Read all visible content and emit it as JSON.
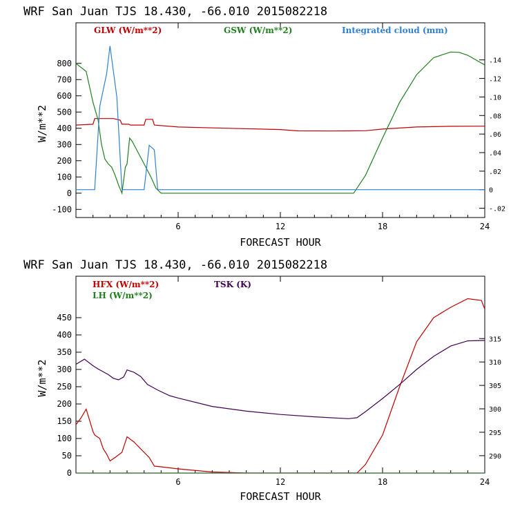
{
  "chart_data": [
    {
      "type": "line",
      "title": "WRF  San Juan TJS  18.430, -66.010  2015082218",
      "xlabel": "FORECAST HOUR",
      "ylabel": "W/m**2",
      "xlim": [
        0,
        24
      ],
      "ylim": [
        -150,
        1050
      ],
      "y2lim": [
        -0.03,
        0.18
      ],
      "x_ticks": [
        "6",
        "12",
        "18",
        "24"
      ],
      "y_ticks": [
        "800",
        "700",
        "600",
        "500",
        "400",
        "300",
        "200",
        "100",
        "0",
        "-100"
      ],
      "y2_ticks": [
        ".14",
        ".12",
        ".10",
        ".08",
        ".06",
        ".04",
        ".02",
        "0",
        "-.02"
      ],
      "series": [
        {
          "name": "GLW (W/m**2)",
          "color": "#c00000",
          "axis": "left",
          "x": [
            0,
            1,
            1.1,
            2.2,
            2.6,
            2.7,
            3.1,
            3.2,
            4.0,
            4.1,
            4.5,
            4.6,
            6,
            9,
            12,
            13,
            15,
            17,
            18,
            20,
            22,
            24
          ],
          "y": [
            420,
            425,
            460,
            460,
            450,
            425,
            425,
            420,
            420,
            455,
            455,
            420,
            408,
            400,
            392,
            384,
            383,
            385,
            395,
            408,
            412,
            413
          ]
        },
        {
          "name": "GSW (W/m**2)",
          "color": "#208020",
          "axis": "left",
          "x": [
            0,
            0.6,
            1.0,
            1.3,
            1.5,
            1.7,
            1.9,
            2.1,
            2.3,
            2.5,
            2.7,
            2.9,
            3.0,
            3.15,
            3.3,
            3.6,
            4.0,
            4.4,
            4.7,
            5,
            6,
            10,
            14,
            16.3,
            17,
            18,
            19,
            20,
            21,
            22,
            22.5,
            23,
            24
          ],
          "y": [
            800,
            750,
            560,
            450,
            300,
            210,
            180,
            160,
            110,
            50,
            0,
            160,
            180,
            340,
            320,
            260,
            180,
            100,
            30,
            0,
            0,
            0,
            0,
            0,
            110,
            340,
            560,
            730,
            835,
            870,
            868,
            850,
            790
          ]
        },
        {
          "name": "Integrated cloud (mm)",
          "color": "#3080d0",
          "axis": "right",
          "x": [
            0,
            0.7,
            1.1,
            1.4,
            1.8,
            2.0,
            2.4,
            2.7,
            3.0,
            3.8,
            4.0,
            4.3,
            4.6,
            4.8,
            5,
            8,
            16,
            24
          ],
          "y": [
            0,
            0,
            0,
            0.09,
            0.125,
            0.155,
            0.1,
            0,
            0,
            0,
            0,
            0.048,
            0.043,
            0,
            0,
            0,
            0,
            0
          ]
        }
      ]
    },
    {
      "type": "line",
      "title": "WRF  San Juan TJS  18.430, -66.010  2015082218",
      "xlabel": "FORECAST HOUR",
      "ylabel": "W/m**2",
      "xlim": [
        0,
        24
      ],
      "ylim": [
        0,
        570
      ],
      "y2lim": [
        286.3,
        328.3
      ],
      "x_ticks": [
        "6",
        "12",
        "18",
        "24"
      ],
      "y_ticks": [
        "450",
        "400",
        "350",
        "300",
        "250",
        "200",
        "150",
        "100",
        "50",
        "0"
      ],
      "y2_ticks": [
        "315",
        "310",
        "305",
        "300",
        "295",
        "290"
      ],
      "series": [
        {
          "name": "HFX (W/m**2)",
          "color": "#c00000",
          "axis": "left",
          "x": [
            0,
            0.3,
            0.6,
            1.0,
            1.1,
            1.4,
            1.6,
            1.8,
            2.0,
            2.3,
            2.7,
            3.0,
            3.4,
            3.8,
            4.3,
            4.6,
            5,
            6,
            8,
            10,
            14,
            16.5,
            17,
            18,
            19,
            20,
            21,
            22,
            23,
            23.8,
            24
          ],
          "y": [
            140,
            160,
            185,
            120,
            110,
            100,
            70,
            55,
            35,
            45,
            60,
            105,
            90,
            70,
            45,
            20,
            18,
            12,
            3,
            0,
            0,
            0,
            25,
            110,
            250,
            380,
            450,
            480,
            505,
            500,
            475
          ]
        },
        {
          "name": "LH  (W/m**2)",
          "color": "#208020",
          "axis": "left",
          "x": [
            0,
            6,
            12,
            18,
            24
          ],
          "y": [
            0,
            0,
            0,
            0,
            0
          ]
        },
        {
          "name": "TSK (K)",
          "color": "#400050",
          "axis": "right",
          "x": [
            0,
            0.5,
            1,
            1.3,
            1.6,
            1.9,
            2.2,
            2.5,
            2.8,
            3.0,
            3.4,
            3.8,
            4.2,
            4.8,
            5.5,
            6,
            8,
            10,
            12,
            14,
            16,
            16.5,
            17,
            18,
            19,
            20,
            21,
            22,
            23,
            24
          ],
          "y": [
            309.5,
            310.6,
            309.2,
            308.5,
            307.9,
            307.3,
            306.5,
            306.2,
            306.8,
            308.3,
            307.8,
            306.9,
            305.2,
            304,
            302.8,
            302.3,
            300.5,
            299.5,
            298.8,
            298.3,
            297.9,
            298.1,
            299.4,
            302.2,
            305.2,
            308.4,
            311.2,
            313.4,
            314.5,
            314.6
          ]
        }
      ]
    }
  ]
}
